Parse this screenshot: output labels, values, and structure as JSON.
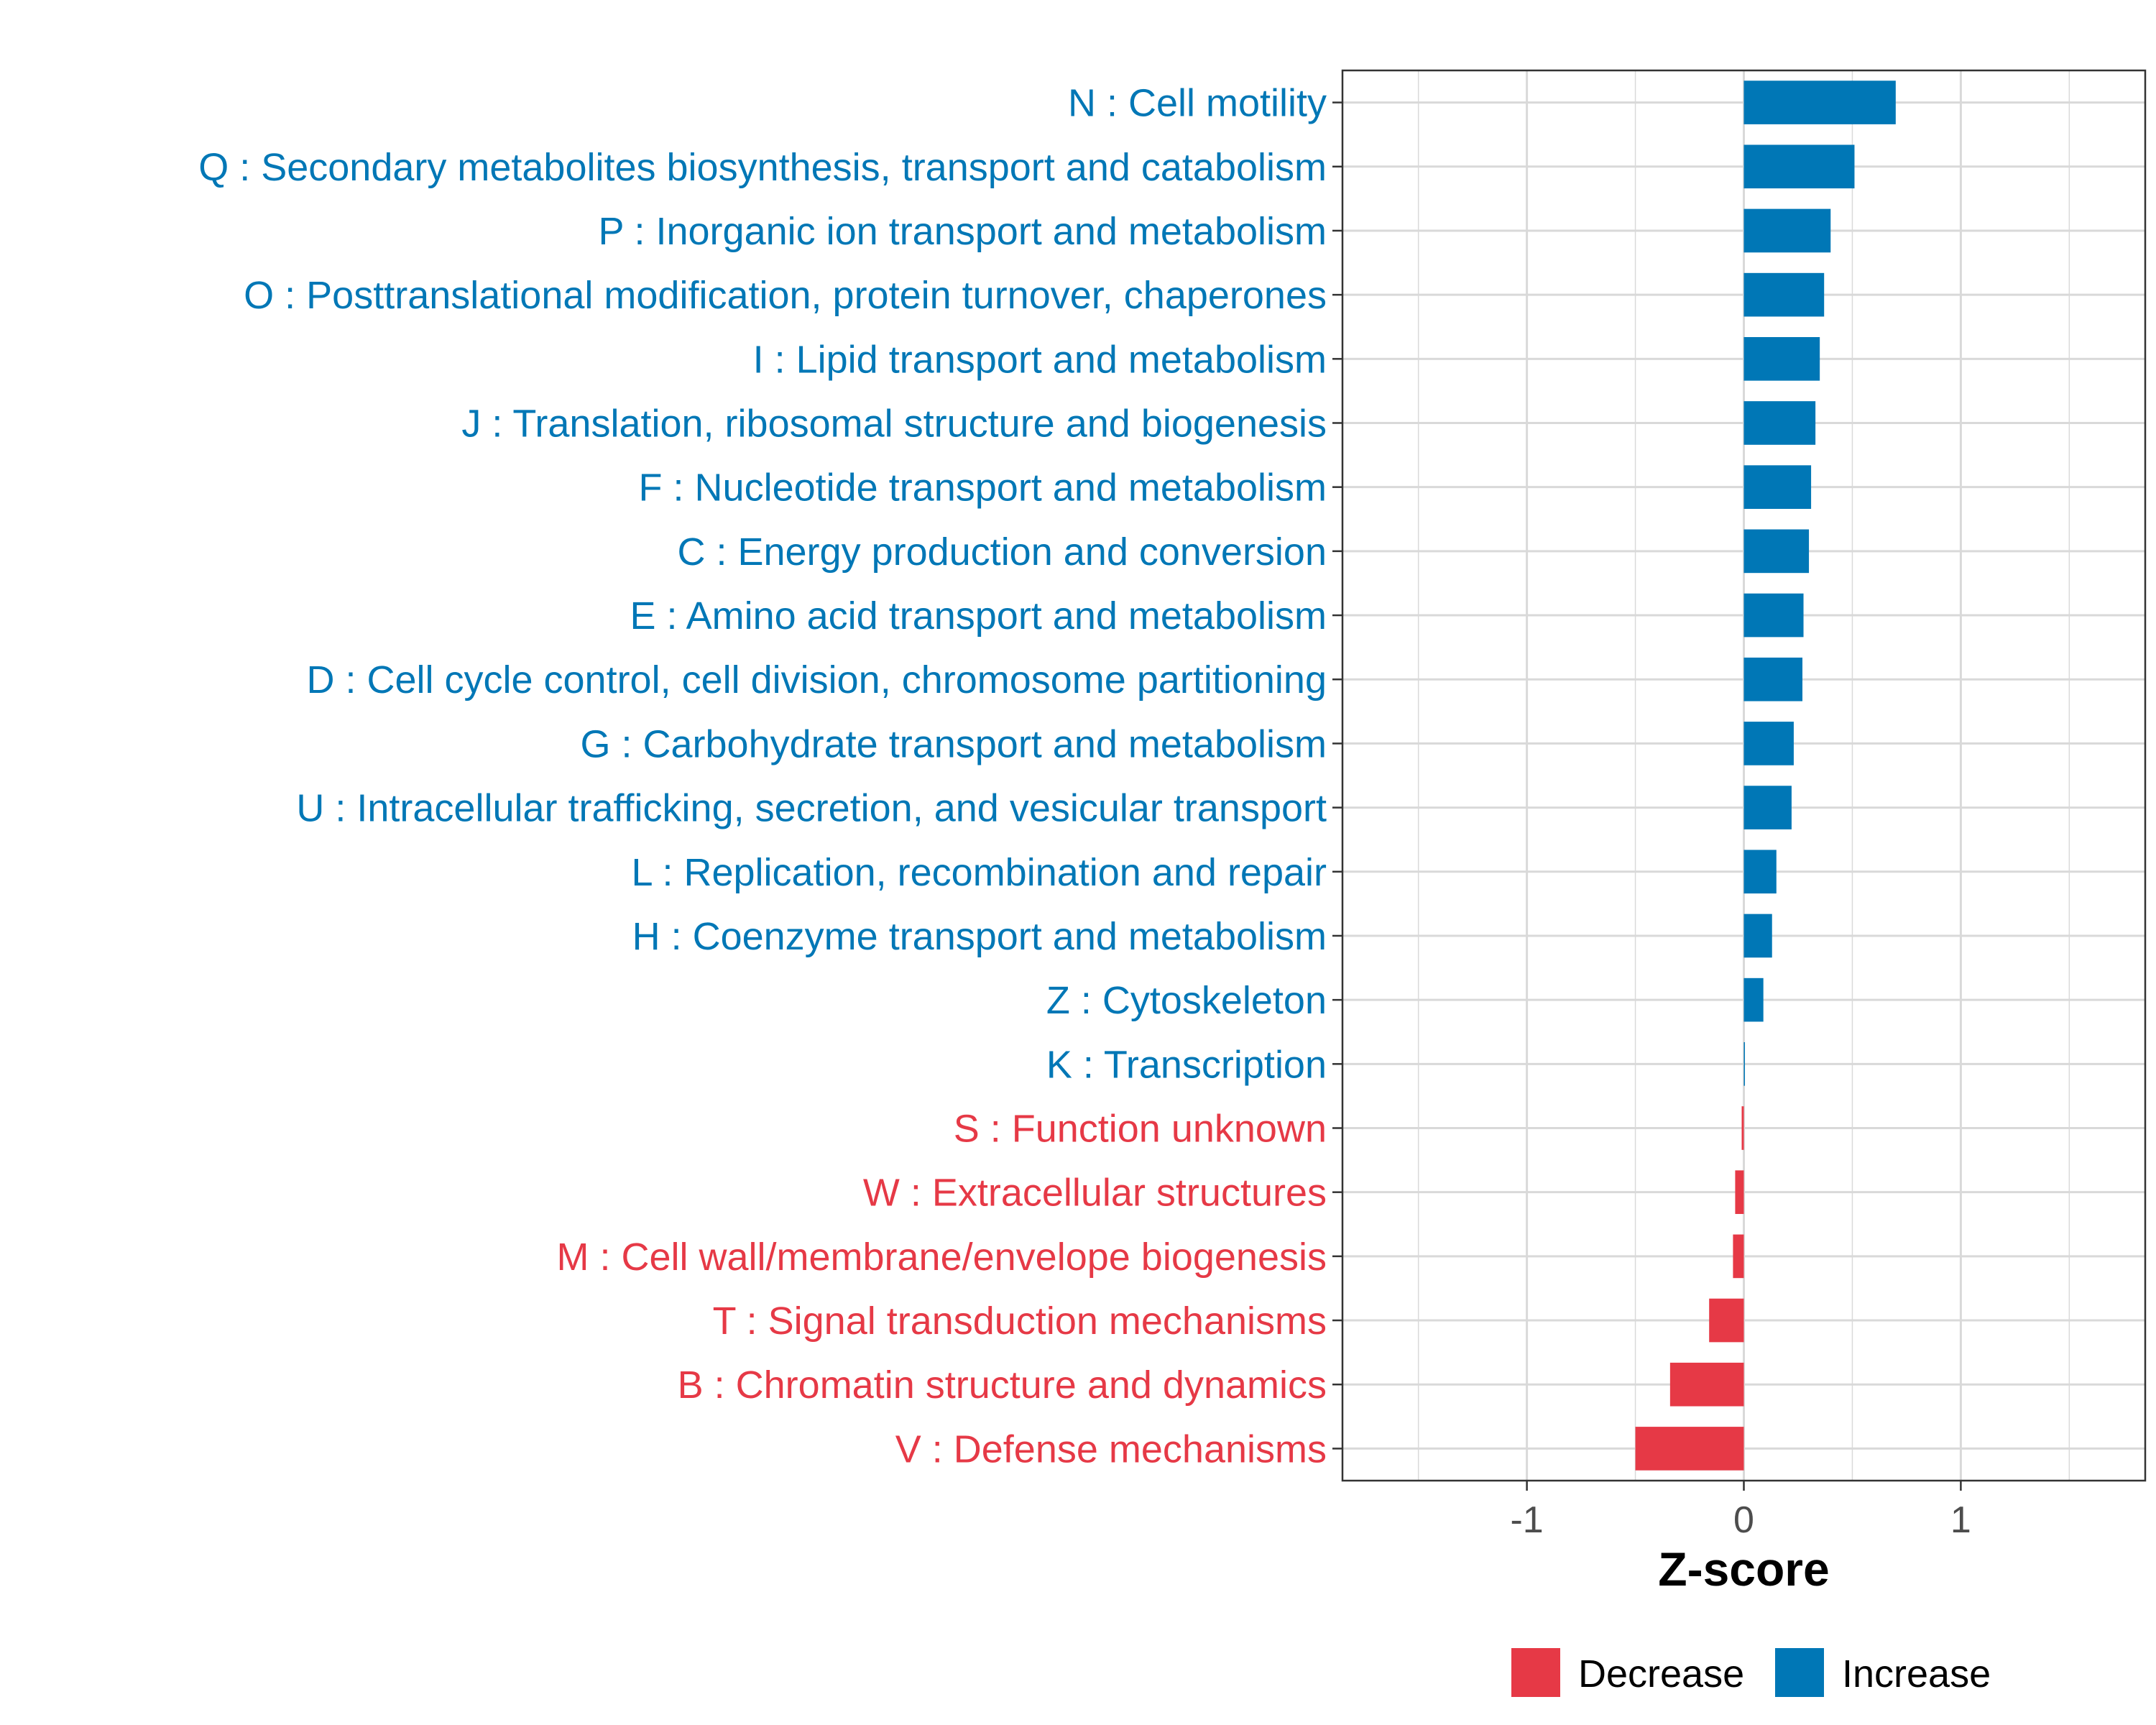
{
  "chart_data": {
    "type": "bar",
    "orientation": "horizontal",
    "xlabel": "Z-score",
    "xlim": [
      -1.85,
      1.85
    ],
    "x_ticks": [
      -1,
      0,
      1
    ],
    "x_tick_labels": [
      "-1",
      "0",
      "1"
    ],
    "grid": true,
    "legend_position": "bottom",
    "colors": {
      "Decrease": "#E63946",
      "Increase": "#0077B6"
    },
    "legend": [
      {
        "name": "Decrease",
        "color": "#E63946"
      },
      {
        "name": "Increase",
        "color": "#0077B6"
      }
    ],
    "bars": [
      {
        "label": "N : Cell motility",
        "value": 0.7,
        "direction": "Increase"
      },
      {
        "label": "Q : Secondary metabolites biosynthesis, transport and catabolism",
        "value": 0.51,
        "direction": "Increase"
      },
      {
        "label": "P : Inorganic ion transport and metabolism",
        "value": 0.4,
        "direction": "Increase"
      },
      {
        "label": "O : Posttranslational modification, protein turnover, chaperones",
        "value": 0.37,
        "direction": "Increase"
      },
      {
        "label": "I : Lipid transport and metabolism",
        "value": 0.35,
        "direction": "Increase"
      },
      {
        "label": "J : Translation, ribosomal structure and biogenesis",
        "value": 0.33,
        "direction": "Increase"
      },
      {
        "label": "F : Nucleotide transport and metabolism",
        "value": 0.31,
        "direction": "Increase"
      },
      {
        "label": "C : Energy production and conversion",
        "value": 0.3,
        "direction": "Increase"
      },
      {
        "label": "E : Amino acid transport and metabolism",
        "value": 0.275,
        "direction": "Increase"
      },
      {
        "label": "D : Cell cycle control, cell division, chromosome partitioning",
        "value": 0.27,
        "direction": "Increase"
      },
      {
        "label": "G : Carbohydrate transport and metabolism",
        "value": 0.23,
        "direction": "Increase"
      },
      {
        "label": "U : Intracellular trafficking, secretion, and vesicular transport",
        "value": 0.22,
        "direction": "Increase"
      },
      {
        "label": "L : Replication, recombination and repair",
        "value": 0.15,
        "direction": "Increase"
      },
      {
        "label": "H : Coenzyme transport and metabolism",
        "value": 0.13,
        "direction": "Increase"
      },
      {
        "label": "Z : Cytoskeleton",
        "value": 0.09,
        "direction": "Increase"
      },
      {
        "label": "K : Transcription",
        "value": 0.005,
        "direction": "Increase"
      },
      {
        "label": "S : Function unknown",
        "value": -0.01,
        "direction": "Decrease"
      },
      {
        "label": "W : Extracellular structures",
        "value": -0.04,
        "direction": "Decrease"
      },
      {
        "label": "M : Cell wall/membrane/envelope biogenesis",
        "value": -0.05,
        "direction": "Decrease"
      },
      {
        "label": "T : Signal transduction mechanisms",
        "value": -0.16,
        "direction": "Decrease"
      },
      {
        "label": "B : Chromatin structure and dynamics",
        "value": -0.34,
        "direction": "Decrease"
      },
      {
        "label": "V : Defense mechanisms",
        "value": -0.5,
        "direction": "Decrease"
      }
    ]
  }
}
